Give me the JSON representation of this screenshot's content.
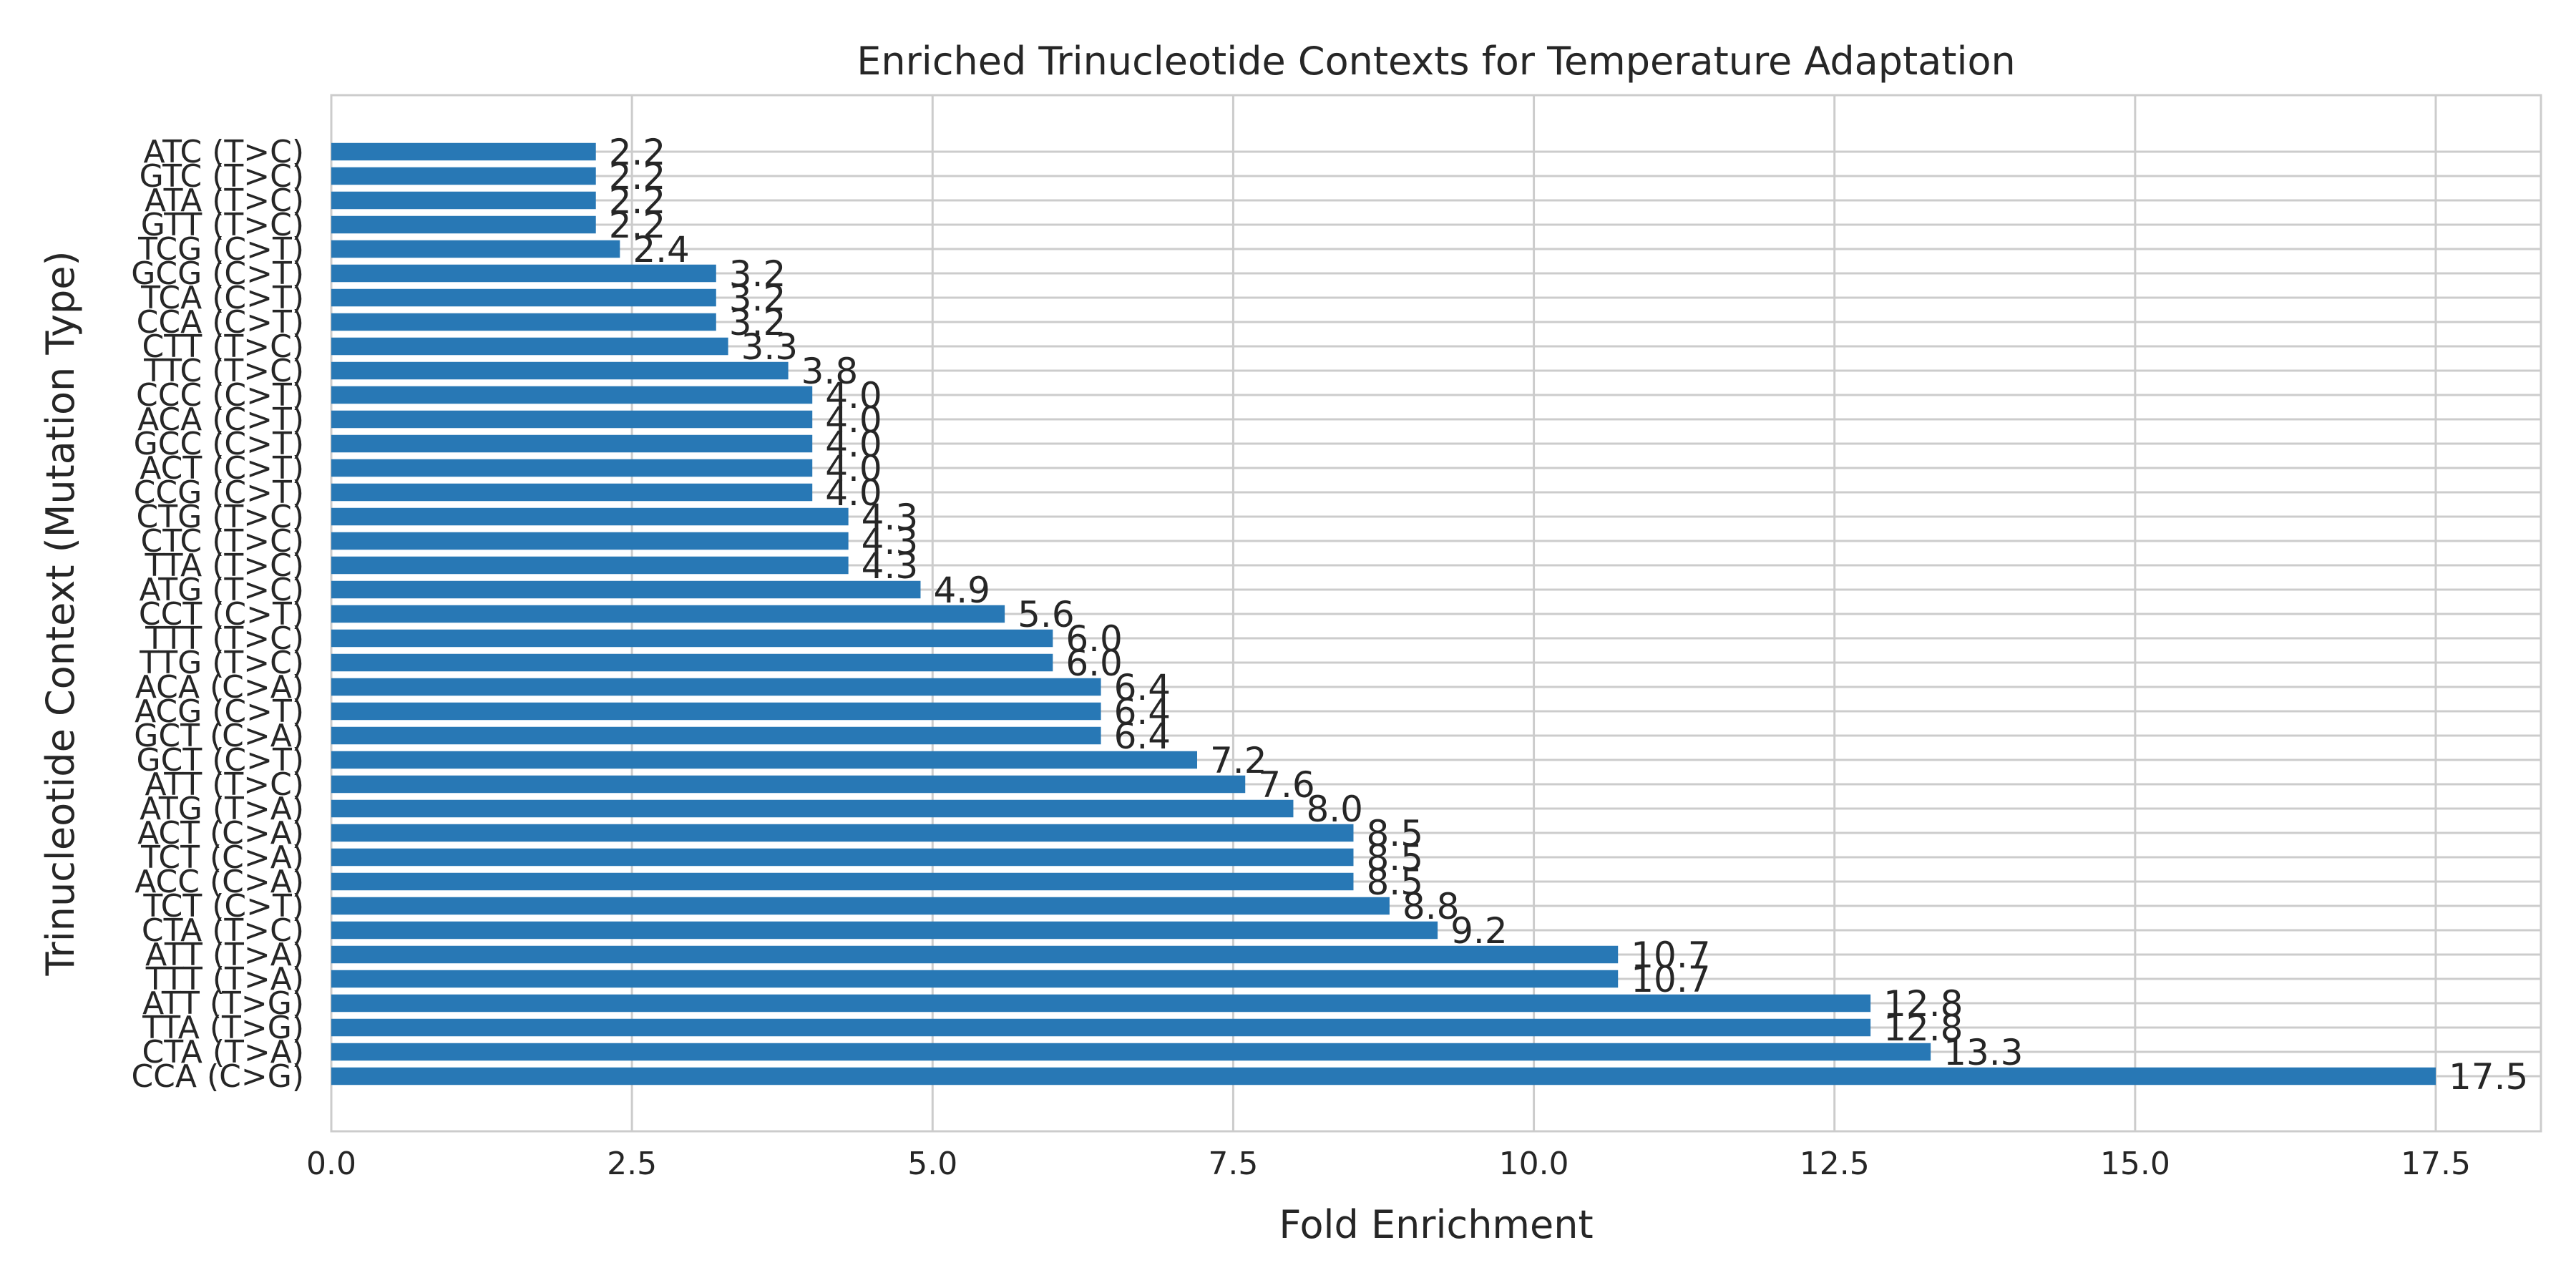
{
  "chart_data": {
    "type": "bar",
    "orientation": "horizontal",
    "title": "Enriched Trinucleotide Contexts for Temperature Adaptation",
    "xlabel": "Fold Enrichment",
    "ylabel": "Trinucleotide Context (Mutation Type)",
    "xlim": [
      0,
      18.3
    ],
    "xticks": [
      "0.0",
      "2.5",
      "5.0",
      "7.5",
      "10.0",
      "12.5",
      "15.0",
      "17.5"
    ],
    "grid": true,
    "bar_color": "#2878b5",
    "categories": [
      "CCA (C>G)",
      "CTA (T>A)",
      "TTA (T>G)",
      "ATT (T>G)",
      "TTT (T>A)",
      "ATT (T>A)",
      "CTA (T>C)",
      "TCT (C>T)",
      "ACC (C>A)",
      "TCT (C>A)",
      "ACT (C>A)",
      "ATG (T>A)",
      "ATT (T>C)",
      "GCT (C>T)",
      "GCT (C>A)",
      "ACG (C>T)",
      "ACA (C>A)",
      "TTG (T>C)",
      "TTT (T>C)",
      "CCT (C>T)",
      "ATG (T>C)",
      "TTA (T>C)",
      "CTC (T>C)",
      "CTG (T>C)",
      "CCG (C>T)",
      "ACT (C>T)",
      "GCC (C>T)",
      "ACA (C>T)",
      "CCC (C>T)",
      "TTC (T>C)",
      "CTT (T>C)",
      "CCA (C>T)",
      "TCA (C>T)",
      "GCG (C>T)",
      "TCG (C>T)",
      "GTT (T>C)",
      "ATA (T>C)",
      "GTC (T>C)",
      "ATC (T>C)"
    ],
    "values": [
      17.5,
      13.3,
      12.8,
      12.8,
      10.7,
      10.7,
      9.2,
      8.8,
      8.5,
      8.5,
      8.5,
      8.0,
      7.6,
      7.2,
      6.4,
      6.4,
      6.4,
      6.0,
      6.0,
      5.6,
      4.9,
      4.3,
      4.3,
      4.3,
      4.0,
      4.0,
      4.0,
      4.0,
      4.0,
      3.8,
      3.3,
      3.2,
      3.2,
      3.2,
      2.4,
      2.2,
      2.2,
      2.2,
      2.2
    ],
    "value_labels": [
      "17.5",
      "13.3",
      "12.8",
      "12.8",
      "10.7",
      "10.7",
      "9.2",
      "8.8",
      "8.5",
      "8.5",
      "8.5",
      "8.0",
      "7.6",
      "7.2",
      "6.4",
      "6.4",
      "6.4",
      "6.0",
      "6.0",
      "5.6",
      "4.9",
      "4.3",
      "4.3",
      "4.3",
      "4.0",
      "4.0",
      "4.0",
      "4.0",
      "4.0",
      "3.8",
      "3.3",
      "3.2",
      "3.2",
      "3.2",
      "2.4",
      "2.2",
      "2.2",
      "2.2",
      "2.2"
    ]
  }
}
